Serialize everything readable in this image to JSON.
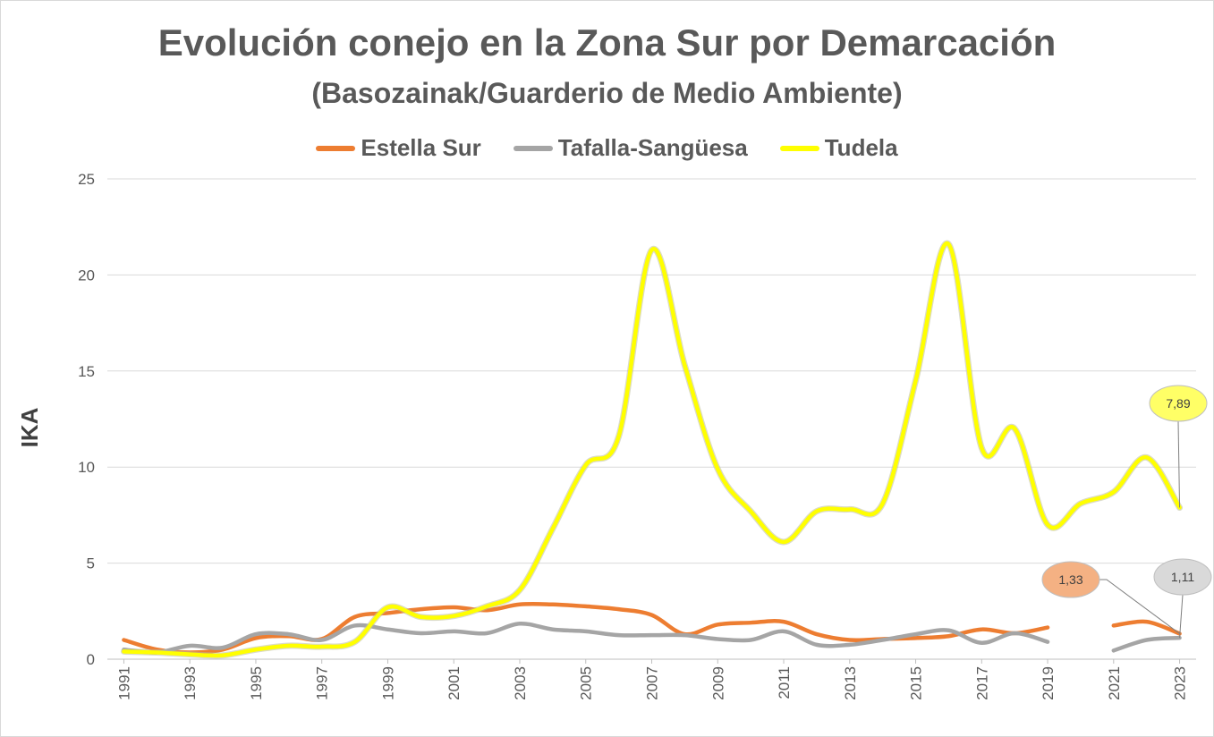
{
  "chart_data": {
    "type": "line",
    "title": "Evolución conejo en la Zona Sur por Demarcación",
    "subtitle": "(Basozainak/Guarderio de Medio Ambiente)",
    "xlabel": "",
    "ylabel": "IKA",
    "ylim": [
      0,
      25
    ],
    "yticks": [
      0,
      5,
      10,
      15,
      20,
      25
    ],
    "x": [
      1991,
      1992,
      1993,
      1994,
      1995,
      1996,
      1997,
      1998,
      1999,
      2000,
      2001,
      2002,
      2003,
      2004,
      2005,
      2006,
      2007,
      2008,
      2009,
      2010,
      2011,
      2012,
      2013,
      2014,
      2015,
      2016,
      2017,
      2018,
      2019,
      2020,
      2021,
      2022,
      2023
    ],
    "xtick_labels": [
      "1991",
      "1993",
      "1995",
      "1997",
      "1999",
      "2001",
      "2003",
      "2005",
      "2007",
      "2009",
      "2011",
      "2013",
      "2015",
      "2017",
      "2019",
      "2021",
      "2023"
    ],
    "legend_position": "top",
    "gridlines": true,
    "series": [
      {
        "name": "Estella Sur",
        "color": "#ED7D31",
        "values": [
          1.0,
          0.5,
          0.35,
          0.5,
          1.1,
          1.2,
          1.05,
          2.2,
          2.4,
          2.6,
          2.7,
          2.55,
          2.85,
          2.85,
          2.75,
          2.6,
          2.3,
          1.3,
          1.8,
          1.9,
          1.95,
          1.3,
          1.0,
          1.05,
          1.1,
          1.2,
          1.55,
          1.35,
          1.65,
          null,
          1.75,
          1.95,
          1.33
        ]
      },
      {
        "name": "Tafalla-Sangüesa",
        "color": "#A5A5A5",
        "values": [
          0.5,
          0.35,
          0.7,
          0.6,
          1.3,
          1.3,
          1.0,
          1.75,
          1.55,
          1.35,
          1.45,
          1.35,
          1.85,
          1.55,
          1.45,
          1.25,
          1.25,
          1.25,
          1.05,
          1.0,
          1.45,
          0.75,
          0.75,
          1.0,
          1.3,
          1.5,
          0.85,
          1.35,
          0.9,
          null,
          0.45,
          1.0,
          1.11
        ]
      },
      {
        "name": "Tudela",
        "color": "#FFFF00",
        "values": [
          0.4,
          0.35,
          0.25,
          0.2,
          0.5,
          0.7,
          0.65,
          0.9,
          2.7,
          2.2,
          2.25,
          2.75,
          3.6,
          6.8,
          10.1,
          11.6,
          21.3,
          15.3,
          9.9,
          7.7,
          6.1,
          7.7,
          7.8,
          8.1,
          14.5,
          21.6,
          11.0,
          12.0,
          7.0,
          8.1,
          8.7,
          10.5,
          7.89
        ]
      }
    ],
    "annotations": [
      {
        "series": "Tudela",
        "x": 2023,
        "label": "7,89",
        "fill": "#FFFF66"
      },
      {
        "series": "Estella Sur",
        "x": 2023,
        "label": "1,33",
        "fill": "#F4B183"
      },
      {
        "series": "Tafalla-Sangüesa",
        "x": 2023,
        "label": "1,11",
        "fill": "#D9D9D9"
      }
    ]
  }
}
